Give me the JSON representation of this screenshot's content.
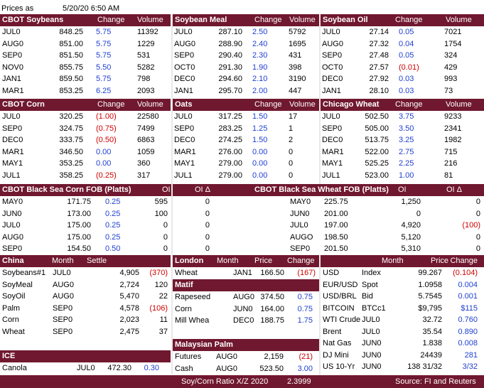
{
  "top": {
    "prices_as": "Prices as",
    "timestamp": "5/20/20 6:50 AM"
  },
  "sections": [
    {
      "title": "CBOT Soybeans",
      "col1": "Change",
      "col2": "Volume",
      "rows": [
        [
          "JUL0",
          "848.25",
          "5.75",
          "11392"
        ],
        [
          "AUG0",
          "851.00",
          "5.75",
          "1229"
        ],
        [
          "SEP0",
          "851.50",
          "5.75",
          "531"
        ],
        [
          "NOV0",
          "855.75",
          "5.50",
          "5282"
        ],
        [
          "JAN1",
          "859.50",
          "5.75",
          "798"
        ],
        [
          "MAR1",
          "853.25",
          "6.25",
          "2093"
        ]
      ]
    },
    {
      "title": "Soybean Meal",
      "col1": "Change",
      "col2": "Volume",
      "rows": [
        [
          "JUL0",
          "287.10",
          "2.50",
          "5792"
        ],
        [
          "AUG0",
          "288.90",
          "2.40",
          "1695"
        ],
        [
          "SEP0",
          "290.40",
          "2.30",
          "431"
        ],
        [
          "OCT0",
          "291.30",
          "1.90",
          "398"
        ],
        [
          "DEC0",
          "294.60",
          "2.10",
          "3190"
        ],
        [
          "JAN1",
          "295.70",
          "2.00",
          "447"
        ]
      ]
    },
    {
      "title": "Soybean Oil",
      "col1": "Change",
      "col2": "Volume",
      "rows": [
        [
          "JUL0",
          "27.14",
          "0.05",
          "7021"
        ],
        [
          "AUG0",
          "27.32",
          "0.04",
          "1754"
        ],
        [
          "SEP0",
          "27.48",
          "0.05",
          "324"
        ],
        [
          "OCT0",
          "27.57",
          "(0.01)",
          "429"
        ],
        [
          "DEC0",
          "27.92",
          "0.03",
          "993"
        ],
        [
          "JAN1",
          "28.10",
          "0.03",
          "73"
        ]
      ]
    },
    {
      "title": "CBOT Corn",
      "col1": "Change",
      "col2": "Volume",
      "rows": [
        [
          "JUL0",
          "320.25",
          "(1.00)",
          "22580"
        ],
        [
          "SEP0",
          "324.75",
          "(0.75)",
          "7499"
        ],
        [
          "DEC0",
          "333.75",
          "(0.50)",
          "6863"
        ],
        [
          "MAR1",
          "346.50",
          "0.00",
          "1059"
        ],
        [
          "MAY1",
          "353.25",
          "0.00",
          "360"
        ],
        [
          "JUL1",
          "358.25",
          "(0.25)",
          "317"
        ]
      ]
    },
    {
      "title": "Oats",
      "col1": "Change",
      "col2": "Volume",
      "rows": [
        [
          "JUL0",
          "317.25",
          "1.50",
          "17"
        ],
        [
          "SEP0",
          "283.25",
          "1.25",
          "1"
        ],
        [
          "DEC0",
          "274.25",
          "1.50",
          "2"
        ],
        [
          "MAR1",
          "276.00",
          "0.00",
          "0"
        ],
        [
          "MAY1",
          "279.00",
          "0.00",
          "0"
        ],
        [
          "JUL1",
          "279.00",
          "0.00",
          "0"
        ]
      ]
    },
    {
      "title": "Chicago Wheat",
      "col1": "Change",
      "col2": "Volume",
      "rows": [
        [
          "JUL0",
          "502.50",
          "3.75",
          "9233"
        ],
        [
          "SEP0",
          "505.00",
          "3.50",
          "2341"
        ],
        [
          "DEC0",
          "513.75",
          "3.25",
          "1982"
        ],
        [
          "MAR1",
          "522.00",
          "2.75",
          "715"
        ],
        [
          "MAY1",
          "525.25",
          "2.25",
          "216"
        ],
        [
          "JUL1",
          "523.00",
          "1.00",
          "81"
        ]
      ]
    }
  ],
  "blacksea": {
    "corn": {
      "title": "CBOT Black Sea Corn FOB (Platts)",
      "oi": "OI",
      "oi_delta": "OI Δ",
      "rows": [
        [
          "MAY0",
          "171.75",
          "0.25",
          "595",
          "0"
        ],
        [
          "JUN0",
          "173.00",
          "0.25",
          "100",
          "0"
        ],
        [
          "JUL0",
          "175.00",
          "0.25",
          "0",
          "0"
        ],
        [
          "AUG0",
          "175.00",
          "0.25",
          "0",
          "0"
        ],
        [
          "SEP0",
          "154.50",
          "0.50",
          "0",
          "0"
        ]
      ]
    },
    "wheat": {
      "title": "CBOT Black Sea Wheat FOB (Platts)",
      "oi": "OI",
      "oi_delta": "OI Δ",
      "rows": [
        [
          "MAY0",
          "225.75",
          "1,250",
          "0"
        ],
        [
          "JUN0",
          "201.00",
          "0",
          "0"
        ],
        [
          "JUL0",
          "197.00",
          "4,920",
          "(100)"
        ],
        [
          "AUGO",
          "198.50",
          "5,120",
          "0"
        ],
        [
          "SEP0",
          "201.50",
          "5,310",
          "0"
        ]
      ]
    }
  },
  "china": {
    "title": "China",
    "month": "Month",
    "settle": "Settle",
    "rows": [
      [
        "Soybeans#1",
        "JUL0",
        "4,905",
        "(370)"
      ],
      [
        "SoyMeal",
        "AUG0",
        "2,724",
        "120"
      ],
      [
        "SoyOil",
        "AUG0",
        "5,470",
        "22"
      ],
      [
        "Palm",
        "SEP0",
        "4,578",
        "(106)"
      ],
      [
        "Corn",
        "SEP0",
        "2,023",
        "11"
      ],
      [
        "Wheat",
        "SEP0",
        "2,475",
        "37"
      ]
    ]
  },
  "london": {
    "title": "London",
    "month": "Month",
    "price": "Price",
    "change": "Change",
    "row": [
      "Wheat",
      "JAN1",
      "166.50",
      "(167)"
    ]
  },
  "matif": {
    "title": "Matif",
    "rows": [
      [
        "Rapeseed",
        "AUG0",
        "374.50",
        "0.75"
      ],
      [
        "Corn",
        "JUN0",
        "164.00",
        "0.75"
      ],
      [
        "Mill Whea",
        "DEC0",
        "188.75",
        "1.75"
      ]
    ]
  },
  "malaysian": {
    "title": "Malaysian Palm",
    "rows": [
      [
        "Futures",
        "AUG0",
        "2,159",
        "(21)"
      ],
      [
        "Cash",
        "AUG0",
        "523.50",
        "3.00"
      ]
    ]
  },
  "ice": {
    "title": "ICE",
    "row": [
      "Canola",
      "JUL0",
      "472.30",
      "0.30"
    ]
  },
  "markets": {
    "month": "Month",
    "price": "Price",
    "change": "Change",
    "rows": [
      [
        "USD",
        "Index",
        "99.267",
        "(0.104)"
      ],
      [
        "EUR/USD",
        "Spot",
        "1.0958",
        "0.004"
      ],
      [
        "USD/BRL",
        "Bid",
        "5.7545",
        "0.001"
      ],
      [
        "BITCOIN",
        "BTCc1",
        "$9,795",
        "$115"
      ],
      [
        "WTI Crude",
        "JUL0",
        "32.72",
        "0.760"
      ],
      [
        "Brent",
        "JUL0",
        "35.54",
        "0.890"
      ],
      [
        "Nat Gas",
        "JUN0",
        "1.838",
        "0.008"
      ],
      [
        "DJ Mini",
        "JUN0",
        "24439",
        "281"
      ],
      [
        "US 10-Yr",
        "JUN0",
        "138 31/32",
        "3/32"
      ]
    ]
  },
  "footer": {
    "ratio": "Soy/Corn Ratio X/Z 2020",
    "ratio_value": "2.3999",
    "source": "Source: FI and Reuters"
  },
  "colors": {
    "header_bg": "#70182f",
    "positive": "#1f3fd0",
    "negative": "#d00000"
  }
}
